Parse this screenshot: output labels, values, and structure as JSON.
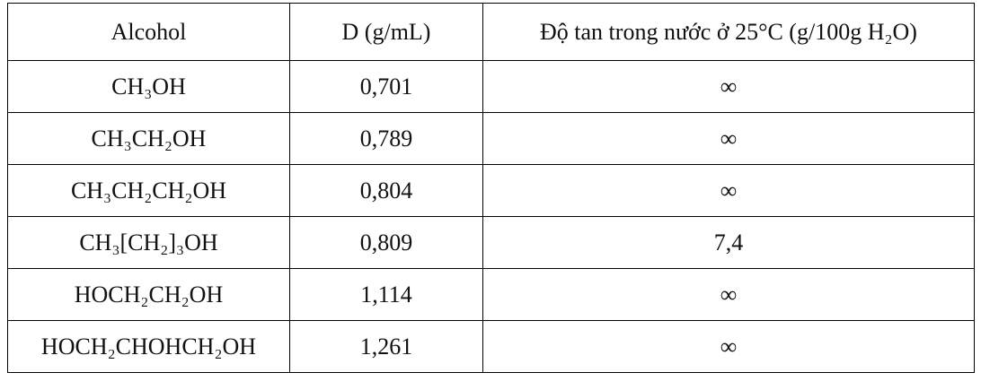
{
  "table": {
    "header": [
      "Alcohol",
      "D (g/mL)",
      "Độ tan trong nước ở 25°C (g/100g H₂O)"
    ],
    "rows": [
      [
        "CH₃OH",
        "0,701",
        "∞"
      ],
      [
        "CH₃CH₂OH",
        "0,789",
        "∞"
      ],
      [
        "CH₃CH₂CH₂OH",
        "0,804",
        "∞"
      ],
      [
        "CH₃[CH₂]₃OH",
        "0,809",
        "7,4"
      ],
      [
        "HOCH₂CH₂OH",
        "1,114",
        "∞"
      ],
      [
        "HOCH₂CHOHCH₂OH",
        "1,261",
        "∞"
      ]
    ]
  }
}
